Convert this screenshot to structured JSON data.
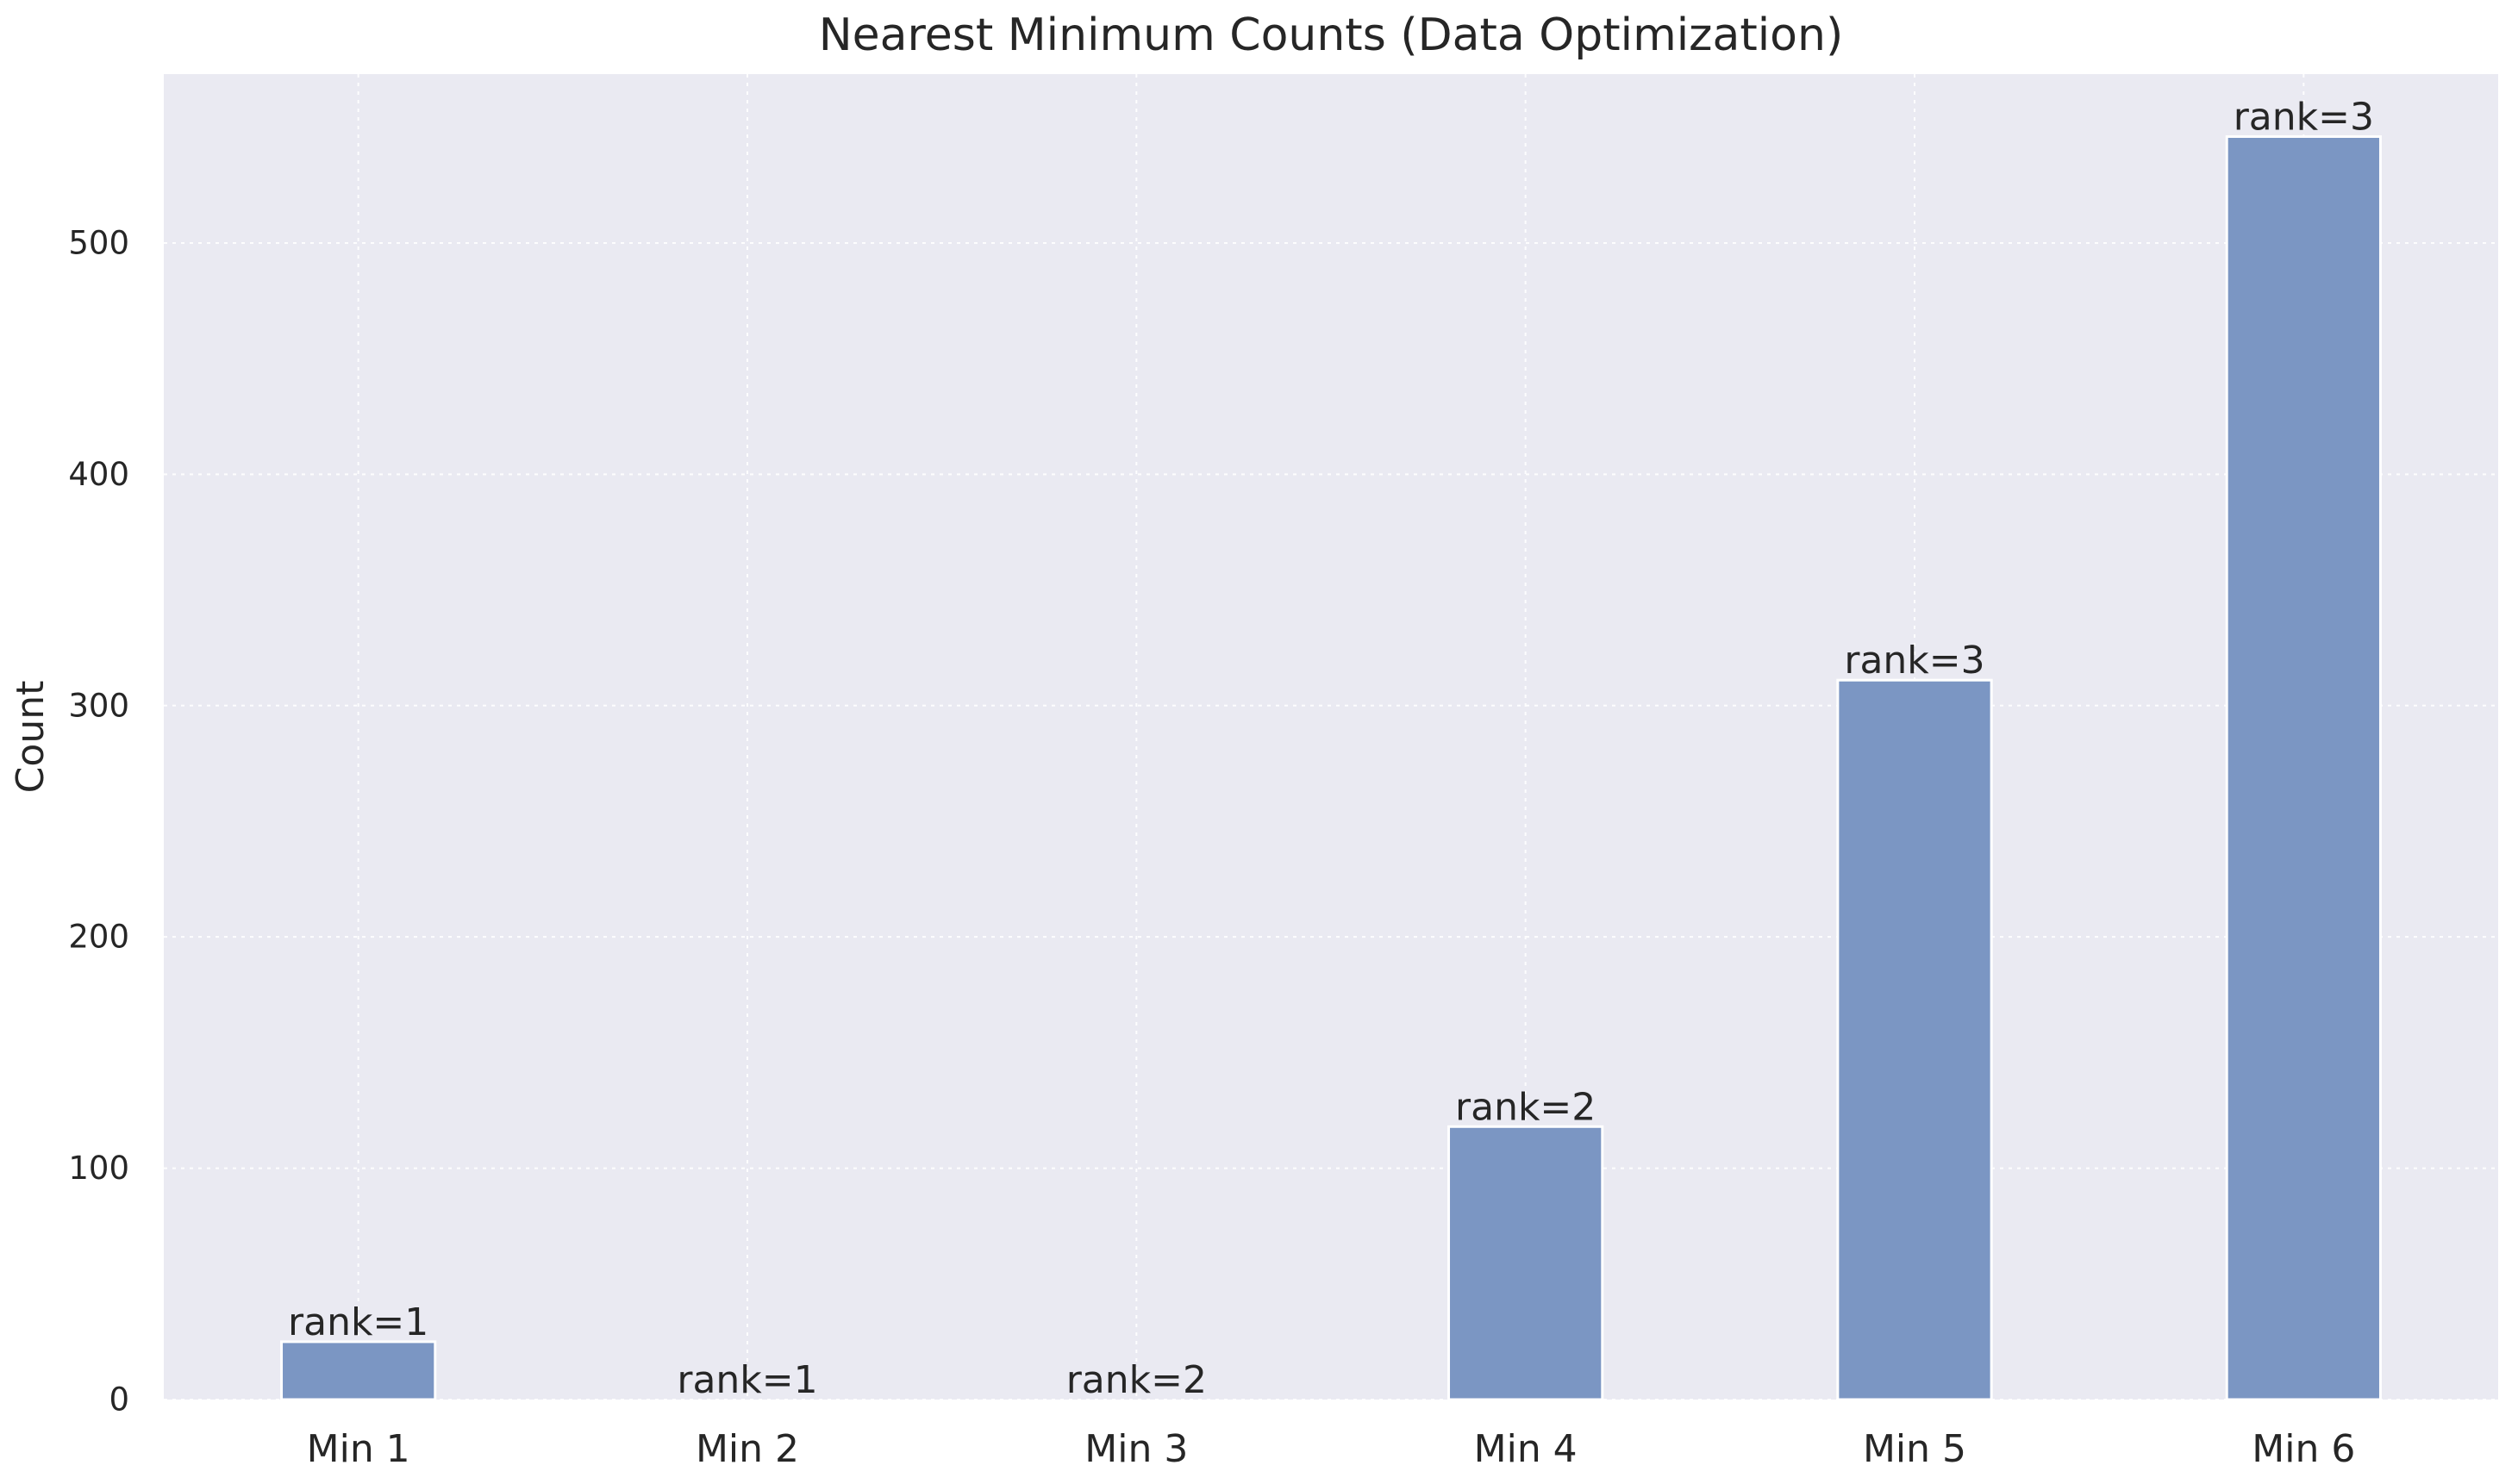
{
  "chart_data": {
    "type": "bar",
    "title": "Nearest Minimum Counts (Data Optimization)",
    "xlabel": "",
    "ylabel": "Count",
    "categories": [
      "Min 1",
      "Min 2",
      "Min 3",
      "Min 4",
      "Min 5",
      "Min 6"
    ],
    "values": [
      25,
      0,
      0,
      118,
      311,
      546
    ],
    "bar_labels": [
      "rank=1",
      "rank=1",
      "rank=2",
      "rank=2",
      "rank=3",
      "rank=3"
    ],
    "ylim": [
      0,
      573
    ],
    "yticks": [
      0,
      100,
      200,
      300,
      400,
      500
    ],
    "grid": true,
    "legend": "none",
    "colors": {
      "background": "#EAEAF2",
      "bar": "#7B96C3",
      "bar_edge": "#FFFFFF",
      "grid": "#FFFFFF",
      "text": "#262626"
    }
  }
}
